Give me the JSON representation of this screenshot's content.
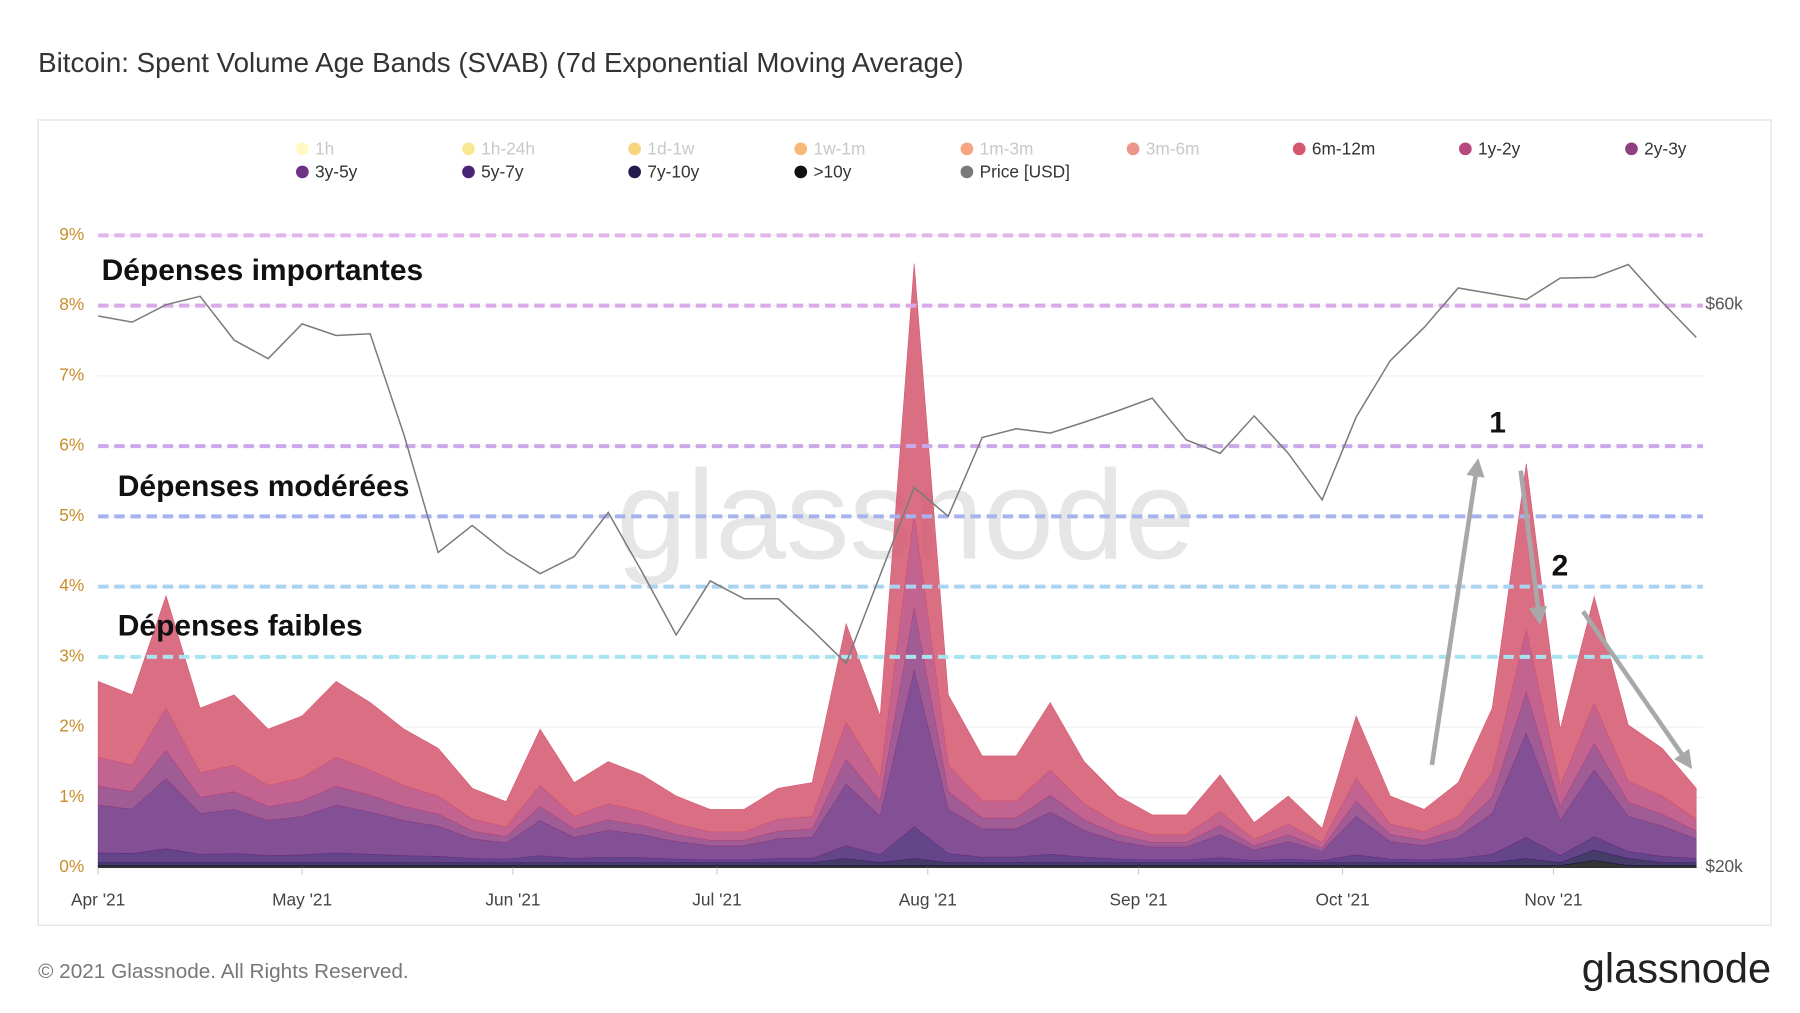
{
  "chart_data": {
    "type": "stacked_area",
    "title": "Bitcoin: Spent Volume Age Bands (SVAB) (7d Exponential Moving Average)",
    "watermark": "glassnode",
    "footer": "© 2021 Glassnode. All Rights Reserved.",
    "logo": "glassnode",
    "annotations": [
      "Dépenses importantes",
      "Dépenses modérées",
      "Dépenses faibles",
      "1",
      "2"
    ],
    "reference_lines": [
      {
        "value": 9,
        "color": "#e2b4ec"
      },
      {
        "value": 8,
        "color": "#d9a9e9"
      },
      {
        "value": 6,
        "color": "#c9a9ea"
      },
      {
        "value": 5,
        "color": "#a9b2ee"
      },
      {
        "value": 4,
        "color": "#a9d3f1"
      },
      {
        "value": 3,
        "color": "#a8e3ee"
      }
    ],
    "hidden_series": [
      {
        "name": "1h",
        "color": "#fff59d"
      },
      {
        "name": "1h-24h",
        "color": "#f5d94a"
      },
      {
        "name": "1d-1w",
        "color": "#f5b82a"
      },
      {
        "name": "1w-1m",
        "color": "#f08c1a"
      },
      {
        "name": "1m-3m",
        "color": "#ee6a2c"
      },
      {
        "name": "3m-6m",
        "color": "#e0503e"
      }
    ],
    "x": [
      0,
      5,
      10,
      15,
      20,
      25,
      30,
      35,
      40,
      45,
      50,
      55,
      60,
      65,
      70,
      75,
      80,
      85,
      90,
      95,
      100,
      105,
      110,
      115,
      120,
      125,
      130,
      135,
      140,
      145,
      150,
      155,
      160,
      165,
      170,
      175,
      180,
      185,
      190,
      195,
      200,
      205,
      210,
      215,
      220,
      225,
      230,
      235
    ],
    "xlim": [
      0,
      236
    ],
    "xticks": [
      {
        "value": 0,
        "label": "Apr '21"
      },
      {
        "value": 30,
        "label": "May '21"
      },
      {
        "value": 61,
        "label": "Jun '21"
      },
      {
        "value": 91,
        "label": "Jul '21"
      },
      {
        "value": 122,
        "label": "Aug '21"
      },
      {
        "value": 153,
        "label": "Sep '21"
      },
      {
        "value": 183,
        "label": "Oct '21"
      },
      {
        "value": 214,
        "label": "Nov '21"
      }
    ],
    "ylim": [
      0,
      9
    ],
    "yticks": [
      {
        "value": 0,
        "label": "0%"
      },
      {
        "value": 1,
        "label": "1%"
      },
      {
        "value": 2,
        "label": "2%"
      },
      {
        "value": 3,
        "label": "3%"
      },
      {
        "value": 4,
        "label": "4%"
      },
      {
        "value": 5,
        "label": "5%"
      },
      {
        "value": 6,
        "label": "6%"
      },
      {
        "value": 7,
        "label": "7%"
      },
      {
        "value": 8,
        "label": "8%"
      },
      {
        "value": 9,
        "label": "9%"
      }
    ],
    "y2lim": [
      20000,
      68700
    ],
    "y2log": true,
    "y2ticks": [
      {
        "value": 20000,
        "label": "$20k"
      },
      {
        "value": 60000,
        "label": "$60k"
      }
    ],
    "series": [
      {
        "name": "6m-12m",
        "color": "#d4566f",
        "values": [
          1.08,
          1.0,
          1.6,
          0.92,
          1.0,
          0.8,
          0.88,
          1.08,
          0.96,
          0.8,
          0.68,
          0.44,
          0.36,
          0.8,
          0.48,
          0.6,
          0.52,
          0.4,
          0.32,
          0.32,
          0.44,
          0.48,
          1.4,
          0.88,
          3.56,
          1.0,
          0.64,
          0.64,
          0.96,
          0.6,
          0.4,
          0.28,
          0.28,
          0.52,
          0.24,
          0.4,
          0.2,
          0.88,
          0.4,
          0.32,
          0.48,
          0.92,
          2.36,
          0.8,
          1.52,
          0.8,
          0.68,
          0.44
        ]
      },
      {
        "name": "1y-2y",
        "color": "#b8487c",
        "values": [
          0.41,
          0.38,
          0.6,
          0.35,
          0.38,
          0.3,
          0.33,
          0.41,
          0.36,
          0.3,
          0.26,
          0.17,
          0.14,
          0.3,
          0.18,
          0.23,
          0.2,
          0.15,
          0.12,
          0.12,
          0.17,
          0.18,
          0.53,
          0.33,
          1.34,
          0.38,
          0.24,
          0.24,
          0.36,
          0.23,
          0.15,
          0.11,
          0.11,
          0.2,
          0.09,
          0.15,
          0.08,
          0.33,
          0.15,
          0.12,
          0.18,
          0.35,
          0.89,
          0.3,
          0.57,
          0.3,
          0.26,
          0.17
        ]
      },
      {
        "name": "2y-3y",
        "color": "#8f3f82",
        "values": [
          0.27,
          0.25,
          0.4,
          0.23,
          0.25,
          0.2,
          0.22,
          0.27,
          0.24,
          0.2,
          0.17,
          0.11,
          0.09,
          0.2,
          0.12,
          0.15,
          0.13,
          0.1,
          0.08,
          0.08,
          0.11,
          0.12,
          0.35,
          0.22,
          0.89,
          0.25,
          0.16,
          0.16,
          0.24,
          0.15,
          0.1,
          0.07,
          0.07,
          0.13,
          0.06,
          0.1,
          0.05,
          0.22,
          0.1,
          0.08,
          0.12,
          0.23,
          0.59,
          0.2,
          0.38,
          0.2,
          0.17,
          0.11
        ]
      },
      {
        "name": "3y-5y",
        "color": "#6e3183",
        "values": [
          0.68,
          0.63,
          1.0,
          0.58,
          0.63,
          0.5,
          0.55,
          0.68,
          0.6,
          0.5,
          0.43,
          0.28,
          0.23,
          0.5,
          0.3,
          0.38,
          0.33,
          0.25,
          0.2,
          0.2,
          0.28,
          0.3,
          0.88,
          0.55,
          2.23,
          0.63,
          0.4,
          0.4,
          0.6,
          0.38,
          0.25,
          0.18,
          0.18,
          0.33,
          0.15,
          0.25,
          0.13,
          0.55,
          0.25,
          0.2,
          0.3,
          0.58,
          1.48,
          0.5,
          0.95,
          0.5,
          0.43,
          0.28
        ]
      },
      {
        "name": "5y-7y",
        "color": "#4a2476",
        "values": [
          0.14,
          0.13,
          0.2,
          0.12,
          0.13,
          0.1,
          0.11,
          0.14,
          0.12,
          0.1,
          0.09,
          0.06,
          0.05,
          0.1,
          0.06,
          0.08,
          0.07,
          0.05,
          0.04,
          0.04,
          0.06,
          0.06,
          0.18,
          0.11,
          0.45,
          0.13,
          0.08,
          0.08,
          0.12,
          0.08,
          0.05,
          0.04,
          0.04,
          0.07,
          0.03,
          0.05,
          0.03,
          0.11,
          0.05,
          0.04,
          0.06,
          0.12,
          0.3,
          0.1,
          0.19,
          0.1,
          0.09,
          0.06
        ]
      },
      {
        "name": "7y-10y",
        "color": "#241a4c",
        "values": [
          0.04,
          0.04,
          0.04,
          0.04,
          0.04,
          0.04,
          0.04,
          0.04,
          0.04,
          0.04,
          0.04,
          0.04,
          0.04,
          0.04,
          0.04,
          0.04,
          0.04,
          0.04,
          0.04,
          0.04,
          0.04,
          0.04,
          0.1,
          0.04,
          0.1,
          0.04,
          0.04,
          0.04,
          0.04,
          0.04,
          0.04,
          0.04,
          0.04,
          0.04,
          0.04,
          0.04,
          0.04,
          0.04,
          0.04,
          0.04,
          0.04,
          0.04,
          0.1,
          0.04,
          0.15,
          0.1,
          0.04,
          0.04
        ]
      },
      {
        "name": ">10y",
        "color": "#111111",
        "values": [
          0.03,
          0.03,
          0.03,
          0.03,
          0.03,
          0.03,
          0.03,
          0.03,
          0.03,
          0.03,
          0.03,
          0.03,
          0.03,
          0.03,
          0.03,
          0.03,
          0.03,
          0.03,
          0.03,
          0.03,
          0.03,
          0.03,
          0.03,
          0.03,
          0.03,
          0.03,
          0.03,
          0.03,
          0.03,
          0.03,
          0.03,
          0.03,
          0.03,
          0.03,
          0.03,
          0.03,
          0.03,
          0.03,
          0.03,
          0.03,
          0.03,
          0.03,
          0.03,
          0.03,
          0.1,
          0.03,
          0.03,
          0.03
        ]
      },
      {
        "name": "Price [USD]",
        "color": "#7a7a7a",
        "axis": "y2",
        "values": [
          58700,
          58000,
          60000,
          61000,
          56000,
          54000,
          57800,
          56500,
          56700,
          46500,
          37000,
          39000,
          37000,
          35500,
          36700,
          40000,
          35600,
          31500,
          35000,
          33800,
          33800,
          31800,
          29800,
          35400,
          42000,
          39700,
          46300,
          47100,
          46700,
          47700,
          48800,
          50000,
          46100,
          44900,
          48300,
          44900,
          41000,
          48200,
          53800,
          57400,
          62000,
          61300,
          60600,
          63200,
          63300,
          64900,
          60300,
          56300
        ]
      }
    ]
  }
}
